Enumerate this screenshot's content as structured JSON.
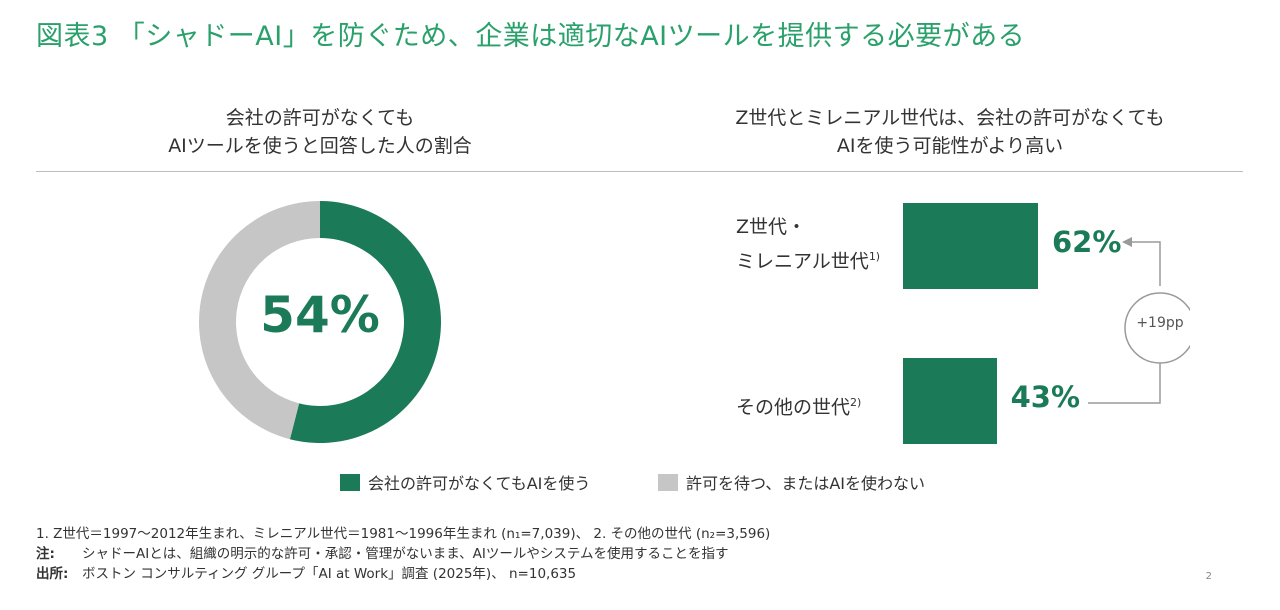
{
  "title": "図表3 「シャドーAI」を防ぐため、企業は適切なAIツールを提供する必要がある",
  "left_panel": {
    "subtitle_line1": "会社の許可がなくても",
    "subtitle_line2": "AIツールを使うと回答した人の割合"
  },
  "right_panel": {
    "subtitle_line1": "Z世代とミレニアル世代は、会社の許可がなくても",
    "subtitle_line2": "AIを使う可能性がより高い"
  },
  "colors": {
    "accent": "#1b7a57",
    "neutral": "#c6c6c6",
    "title": "#2aa06b"
  },
  "chart_data": [
    {
      "type": "pie",
      "donut": true,
      "center_label": "54%",
      "slices": [
        {
          "name": "会社の許可がなくてもAIを使う",
          "value": 54,
          "color": "#1b7a57"
        },
        {
          "name": "許可を待つ、またはAIを使わない",
          "value": 46,
          "color": "#c6c6c6"
        }
      ]
    },
    {
      "type": "bar",
      "orientation": "horizontal",
      "categories": [
        {
          "line1": "Z世代・",
          "line2": "ミレニアル世代",
          "note": "1)"
        },
        {
          "line1": "その他の世代",
          "line2": "",
          "note": "2)"
        }
      ],
      "values": [
        62,
        43
      ],
      "value_labels": [
        "62%",
        "43%"
      ],
      "max": 100,
      "annotation": "+19pp"
    }
  ],
  "legend": [
    {
      "label": "会社の許可がなくてもAIを使う",
      "color": "#1b7a57"
    },
    {
      "label": "許可を待つ、またはAIを使わない",
      "color": "#c6c6c6"
    }
  ],
  "footnotes": {
    "line1": "1. Z世代＝1997～2012年生まれ、ミレニアル世代＝1981～1996年生まれ (n₁=7,039)、 2. その他の世代 (n₂=3,596)",
    "note_label": "注:",
    "note_text": "シャドーAIとは、組織の明示的な許可・承認・管理がないまま、AIツールやシステムを使用することを指す",
    "source_label": "出所:",
    "source_text": "ボストン コンサルティング グループ「AI at Work」調査 (2025年)、 n=10,635"
  },
  "page_number": "2"
}
